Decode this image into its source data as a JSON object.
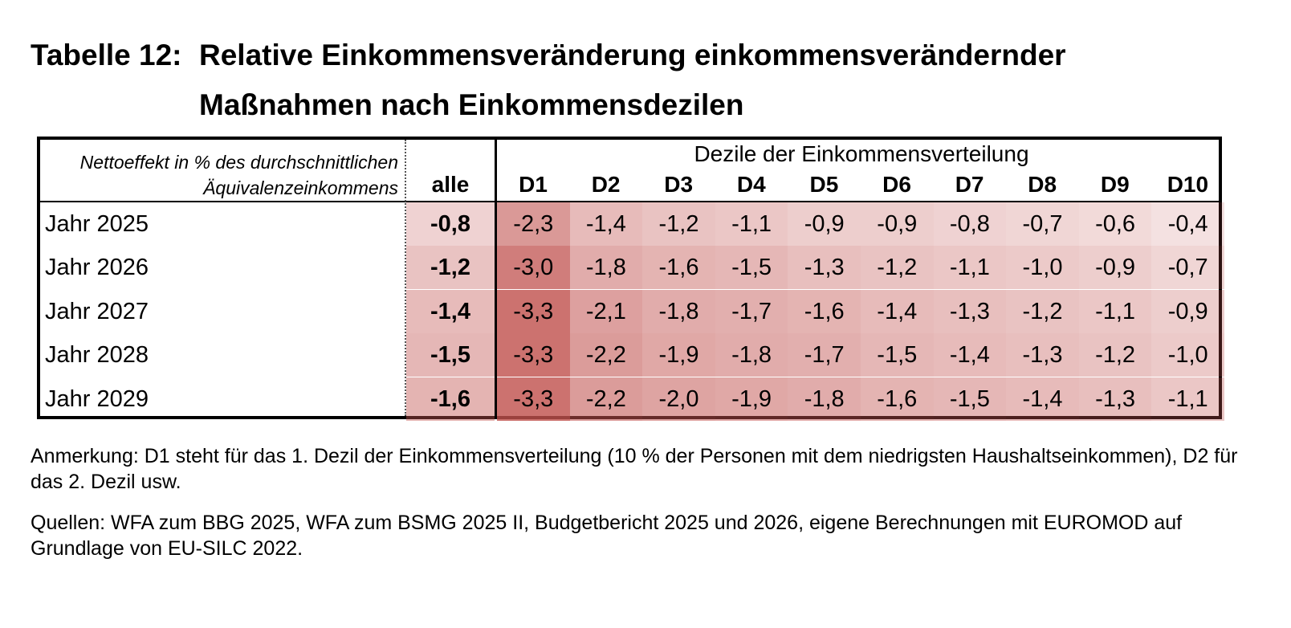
{
  "title": {
    "label": "Tabelle 12:",
    "line1": "Relative Einkommensveränderung einkommensverändernder",
    "line2": "Maßnahmen nach Einkommensdezilen"
  },
  "table": {
    "header_note_line1": "Nettoeffekt in % des durchschnittlichen",
    "header_note_line2": "Äquivalenzeinkommens",
    "col_all": "alle",
    "deciles_title": "Dezile der Einkommensverteilung",
    "decile_labels": [
      "D1",
      "D2",
      "D3",
      "D4",
      "D5",
      "D6",
      "D7",
      "D8",
      "D9",
      "D10"
    ],
    "rows": [
      {
        "label": "Jahr 2025",
        "all": "-0,8",
        "values": [
          "-2,3",
          "-1,4",
          "-1,2",
          "-1,1",
          "-0,9",
          "-0,9",
          "-0,8",
          "-0,7",
          "-0,6",
          "-0,4"
        ]
      },
      {
        "label": "Jahr 2026",
        "all": "-1,2",
        "values": [
          "-3,0",
          "-1,8",
          "-1,6",
          "-1,5",
          "-1,3",
          "-1,2",
          "-1,1",
          "-1,0",
          "-0,9",
          "-0,7"
        ]
      },
      {
        "label": "Jahr 2027",
        "all": "-1,4",
        "values": [
          "-3,3",
          "-2,1",
          "-1,8",
          "-1,7",
          "-1,6",
          "-1,4",
          "-1,3",
          "-1,2",
          "-1,1",
          "-0,9"
        ]
      },
      {
        "label": "Jahr 2028",
        "all": "-1,5",
        "values": [
          "-3,3",
          "-2,2",
          "-1,9",
          "-1,8",
          "-1,7",
          "-1,5",
          "-1,4",
          "-1,3",
          "-1,2",
          "-1,0"
        ]
      },
      {
        "label": "Jahr 2029",
        "all": "-1,6",
        "values": [
          "-3,3",
          "-2,2",
          "-2,0",
          "-1,9",
          "-1,8",
          "-1,6",
          "-1,5",
          "-1,4",
          "-1,3",
          "-1,1"
        ]
      }
    ]
  },
  "heat_color": "#c0504d",
  "notes": {
    "anmerkung": "Anmerkung: D1 steht für das 1. Dezil der Einkommensverteilung (10 % der Personen mit dem niedrigsten Haushaltseinkommen), D2 für das 2. Dezil usw.",
    "quellen": "Quellen: WFA zum BBG 2025, WFA zum BSMG 2025 II, Budgetbericht 2025 und 2026, eigene Berechnungen mit EUROMOD auf Grundlage von EU-SILC 2022."
  }
}
